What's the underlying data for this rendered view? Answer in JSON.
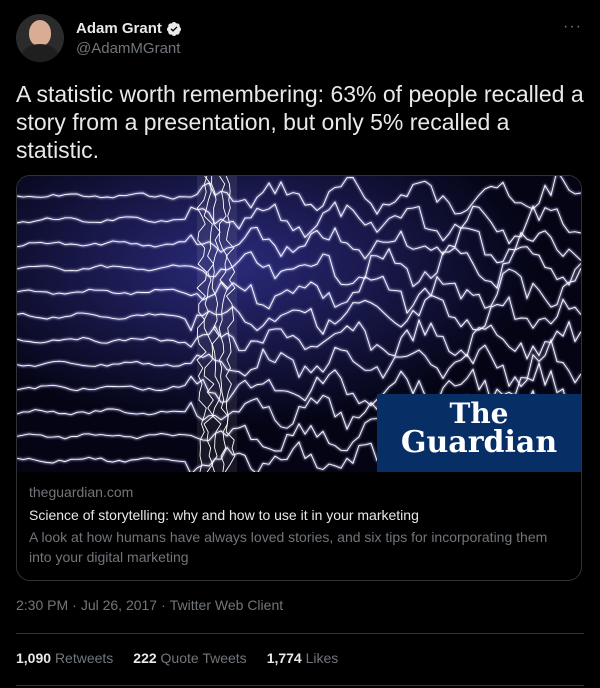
{
  "author": {
    "display_name": "Adam Grant",
    "handle": "@AdamMGrant",
    "verified": true
  },
  "more_icon": "···",
  "tweet": {
    "text": "A statistic worth remembering: 63% of people recalled a story from a presentation, but only 5% recalled a statistic."
  },
  "card": {
    "logo_line1": "The",
    "logo_line2": "Guardian",
    "domain": "theguardian.com",
    "title": "Science of storytelling: why and how to use it in your marketing",
    "description": "A look at how humans have always loved stories, and six tips for incorporating them into your digital marketing"
  },
  "meta": {
    "time": "2:30 PM",
    "date": "Jul 26, 2017",
    "separator": "·",
    "client": "Twitter Web Client"
  },
  "stats": [
    {
      "count": "1,090",
      "label": "Retweets"
    },
    {
      "count": "222",
      "label": "Quote Tweets"
    },
    {
      "count": "1,774",
      "label": "Likes"
    }
  ],
  "colors": {
    "background": "#000000",
    "text": "#e7e9ea",
    "secondary": "#71767b",
    "border": "#2f3336",
    "verified": "#1d9bf0",
    "guardian_blue": "#072f66"
  }
}
